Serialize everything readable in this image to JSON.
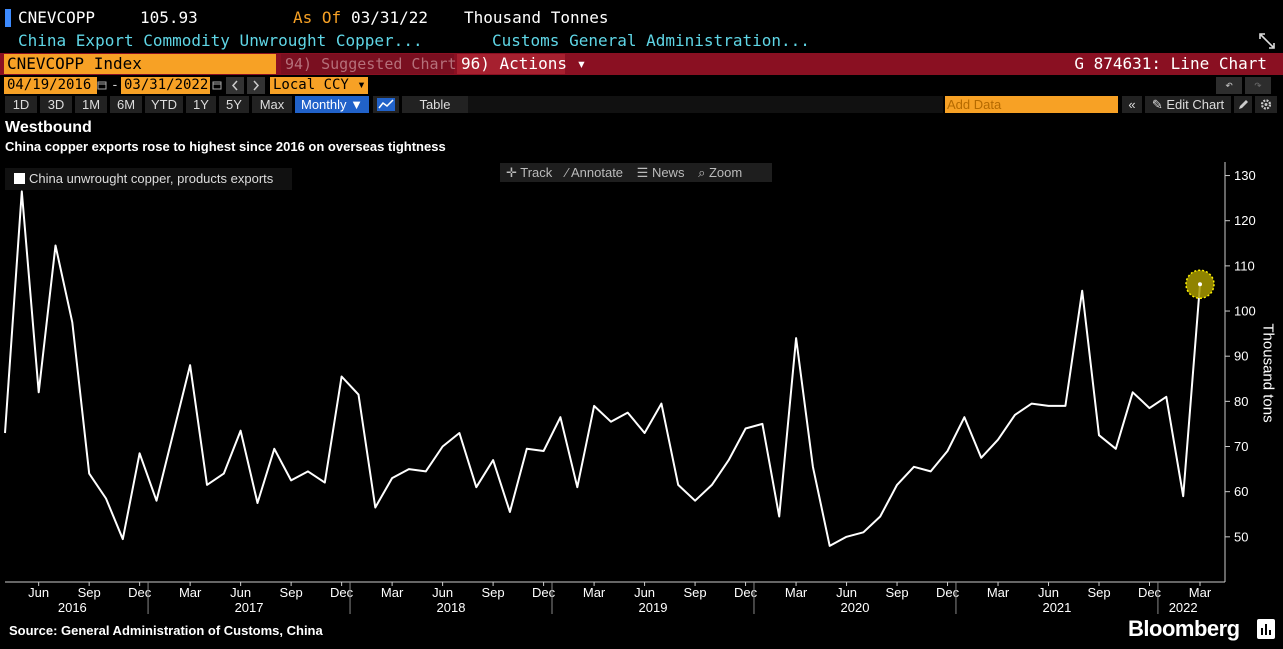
{
  "header": {
    "ticker": "CNEVCOPP",
    "value": "105.93",
    "as_of_label": "As Of",
    "as_of_date": "03/31/22",
    "unit": "Thousand Tonnes",
    "description": "China Export Commodity Unwrought Copper...",
    "source_name": "Customs General Administration..."
  },
  "command_bar": {
    "security": "CNEVCOPP Index",
    "suggested": "94) Suggested Charts",
    "actions": "96) Actions ▾",
    "chart_title": "G 874631: Line Chart"
  },
  "date_bar": {
    "start_date": "04/19/2016",
    "dash": "-",
    "end_date": "03/31/2022",
    "currency": "Local CCY ▾",
    "undo_icon": "↶",
    "redo_icon": "↷"
  },
  "period_bar": {
    "periods": [
      "1D",
      "3D",
      "1M",
      "6M",
      "YTD",
      "1Y",
      "5Y",
      "Max"
    ],
    "frequency": "Monthly ▼",
    "table": "Table",
    "add_data_placeholder": "Add Data",
    "collapse": "«",
    "edit_chart": "✎ Edit Chart",
    "settings_icon": "gear-icon"
  },
  "chart_tools": {
    "track": "✛ Track",
    "annotate": "⁄ Annotate",
    "news": "☰ News",
    "zoom": "⌕ Zoom"
  },
  "chart_data": {
    "type": "line",
    "title": "Westbound",
    "subtitle": "China copper exports rose to highest since 2016 on overseas tightness",
    "ylabel": "Thousand tons",
    "ylim": [
      40,
      133
    ],
    "yticks": [
      50,
      60,
      70,
      80,
      90,
      100,
      110,
      120,
      130
    ],
    "axis_side": "right",
    "grid": false,
    "legend_position": "top-left",
    "color": "#ffffff",
    "series": [
      {
        "name": "China unwrought copper, products exports",
        "x": [
          "2016-04",
          "2016-05",
          "2016-06",
          "2016-07",
          "2016-08",
          "2016-09",
          "2016-10",
          "2016-11",
          "2016-12",
          "2017-01",
          "2017-02",
          "2017-03",
          "2017-04",
          "2017-05",
          "2017-06",
          "2017-07",
          "2017-08",
          "2017-09",
          "2017-10",
          "2017-11",
          "2017-12",
          "2018-01",
          "2018-02",
          "2018-03",
          "2018-04",
          "2018-05",
          "2018-06",
          "2018-07",
          "2018-08",
          "2018-09",
          "2018-10",
          "2018-11",
          "2018-12",
          "2019-01",
          "2019-02",
          "2019-03",
          "2019-04",
          "2019-05",
          "2019-06",
          "2019-07",
          "2019-08",
          "2019-09",
          "2019-10",
          "2019-11",
          "2019-12",
          "2020-01",
          "2020-02",
          "2020-03",
          "2020-04",
          "2020-05",
          "2020-06",
          "2020-07",
          "2020-08",
          "2020-09",
          "2020-10",
          "2020-11",
          "2020-12",
          "2021-01",
          "2021-02",
          "2021-03",
          "2021-04",
          "2021-05",
          "2021-06",
          "2021-07",
          "2021-08",
          "2021-09",
          "2021-10",
          "2021-11",
          "2021-12",
          "2022-01",
          "2022-02",
          "2022-03"
        ],
        "values": [
          73,
          126.5,
          82,
          114.5,
          97.5,
          64,
          58.5,
          49.5,
          68.5,
          58,
          73,
          88,
          61.5,
          64,
          73.5,
          57.5,
          69.5,
          62.5,
          64.5,
          62,
          85.5,
          81.5,
          56.5,
          63,
          65,
          64.5,
          70,
          73,
          61,
          67,
          55.5,
          69.5,
          69,
          76.5,
          61,
          79,
          75.5,
          77.5,
          73,
          79.5,
          61.5,
          58,
          61.5,
          67,
          74,
          75,
          54.5,
          94,
          65.5,
          48,
          50,
          51,
          54.5,
          61.5,
          65.5,
          64.5,
          69,
          76.5,
          67.5,
          71.5,
          77,
          79.5,
          79,
          79,
          104.5,
          72.5,
          69.5,
          82,
          78.5,
          81,
          59,
          105.93
        ]
      }
    ],
    "x_month_labels": [
      "Jun",
      "Sep",
      "Dec",
      "Mar",
      "Jun",
      "Sep",
      "Dec",
      "Mar",
      "Jun",
      "Sep",
      "Dec",
      "Mar",
      "Jun",
      "Sep",
      "Dec",
      "Mar",
      "Jun",
      "Sep",
      "Dec",
      "Mar",
      "Jun",
      "Sep",
      "Dec",
      "Mar"
    ],
    "x_year_labels": [
      "2016",
      "2017",
      "2018",
      "2019",
      "2020",
      "2021",
      "2022"
    ],
    "highlight_point": "last"
  },
  "footer": {
    "source": "Source: General Administration of Customs, China",
    "brand": "Bloomberg"
  }
}
